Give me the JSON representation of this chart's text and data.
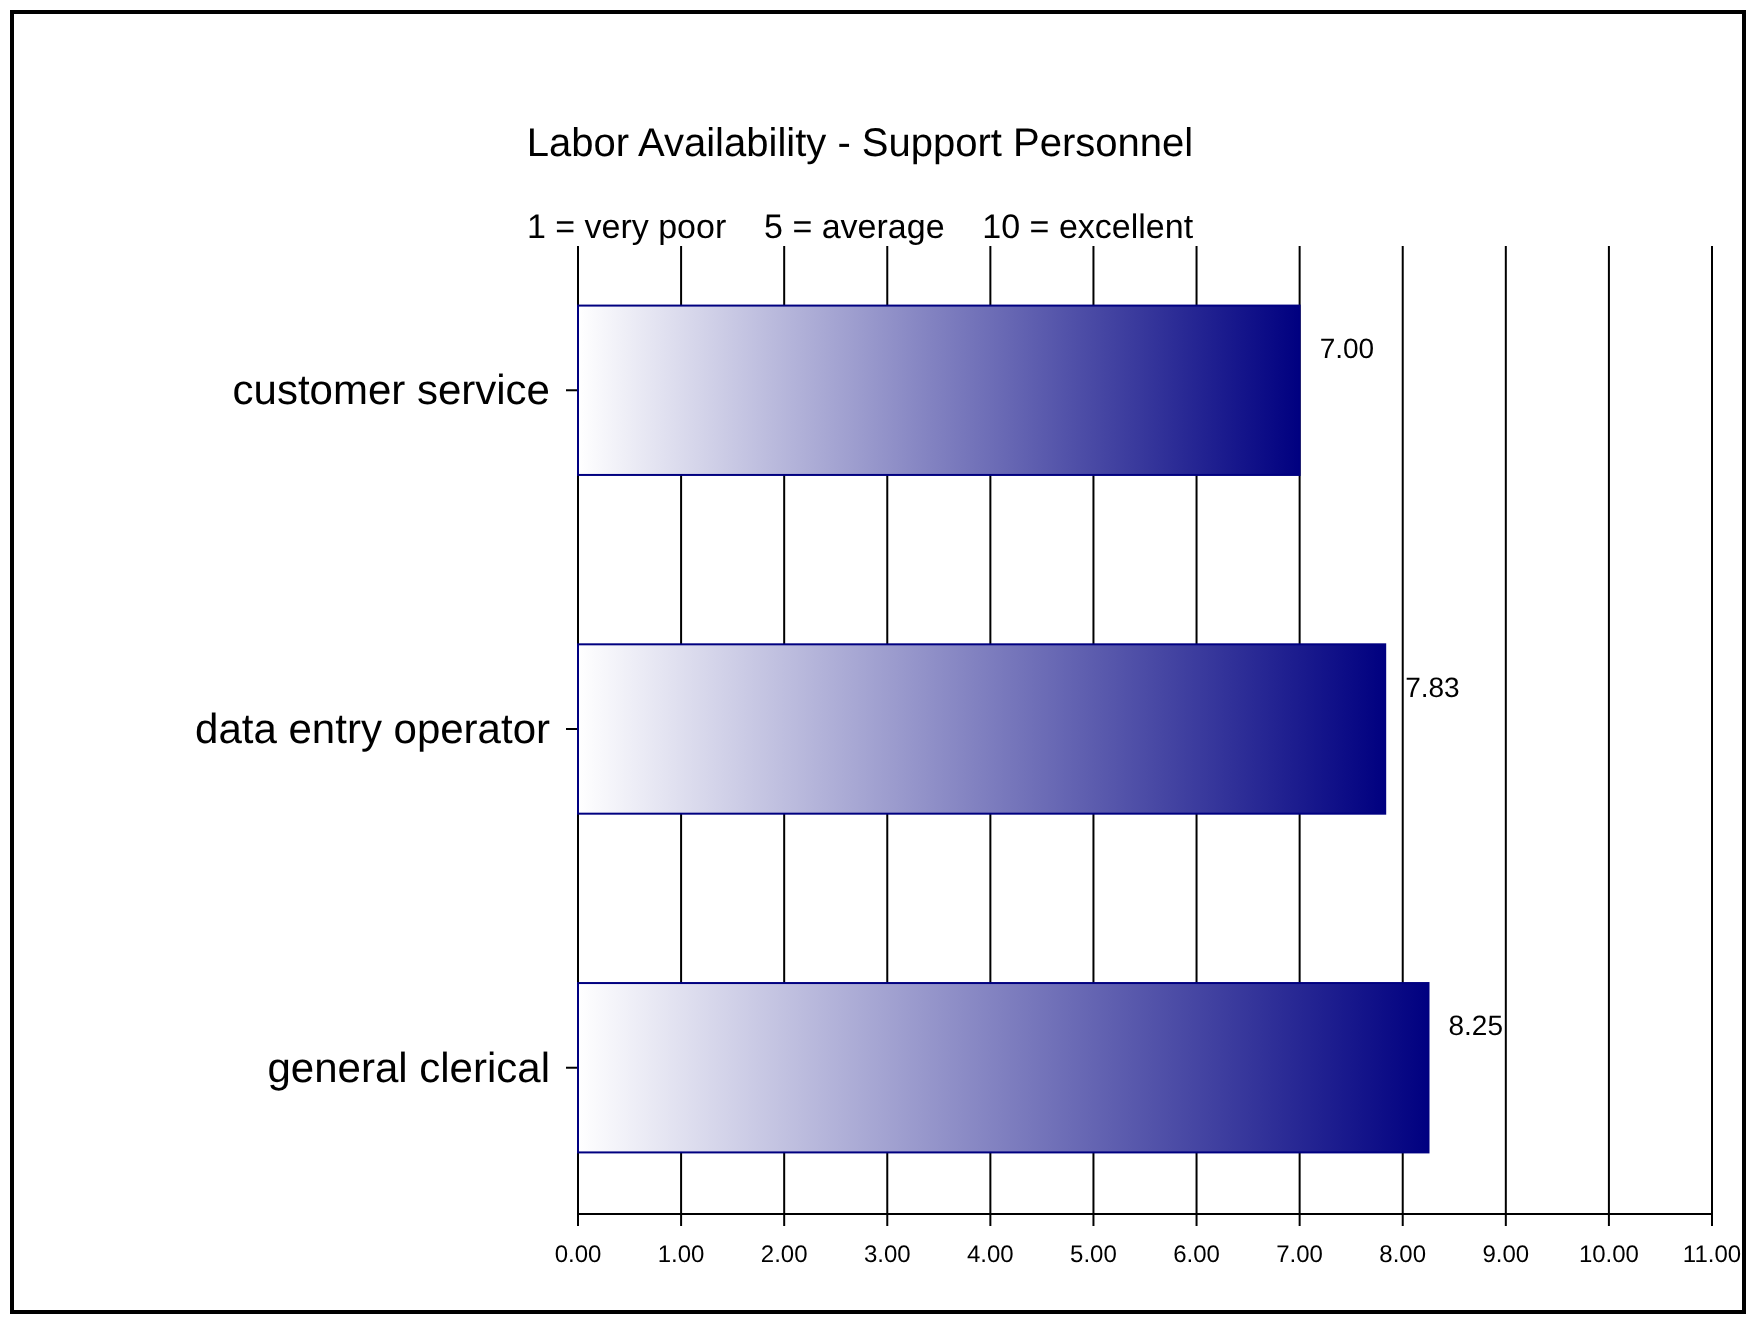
{
  "chart_data": {
    "type": "bar",
    "orientation": "horizontal",
    "title": "Labor Availability - Support Personnel",
    "subtitle": "1 = very poor    5 = average    10 = excellent",
    "categories": [
      "customer service",
      "data entry operator",
      "general clerical"
    ],
    "values": [
      7.0,
      7.83,
      8.25
    ],
    "value_labels": [
      "7.00",
      "7.83",
      "8.25"
    ],
    "color": "#000080",
    "grid": "x",
    "xlim": [
      0,
      11
    ],
    "xticks": [
      {
        "value": 0,
        "label": "0.00"
      },
      {
        "value": 1,
        "label": "1.00"
      },
      {
        "value": 2,
        "label": "2.00"
      },
      {
        "value": 3,
        "label": "3.00"
      },
      {
        "value": 4,
        "label": "4.00"
      },
      {
        "value": 5,
        "label": "5.00"
      },
      {
        "value": 6,
        "label": "6.00"
      },
      {
        "value": 7,
        "label": "7.00"
      },
      {
        "value": 8,
        "label": "8.00"
      },
      {
        "value": 9,
        "label": "9.00"
      },
      {
        "value": 10,
        "label": "10.00"
      },
      {
        "value": 11,
        "label": "11.00"
      }
    ]
  }
}
